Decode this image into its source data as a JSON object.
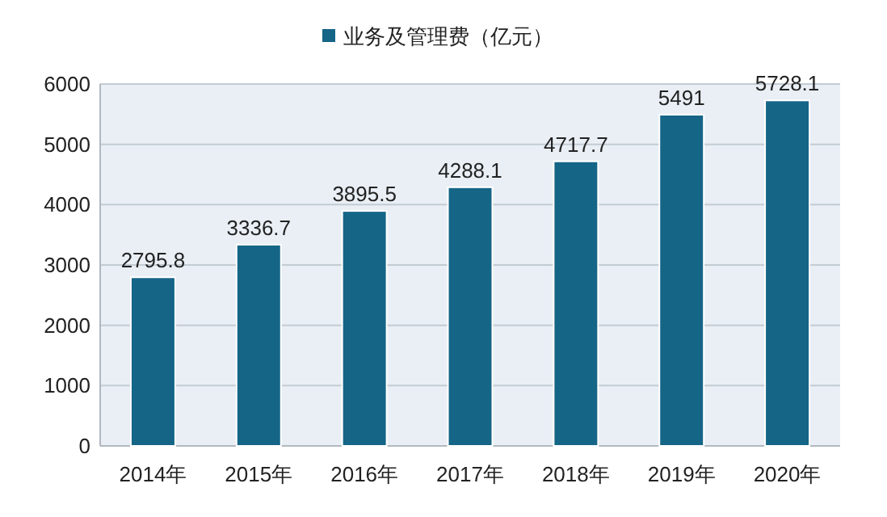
{
  "chart_data": {
    "type": "bar",
    "categories": [
      "2014年",
      "2015年",
      "2016年",
      "2017年",
      "2018年",
      "2019年",
      "2020年"
    ],
    "series": [
      {
        "name": "业务及管理费（亿元）",
        "color": "#156587",
        "values": [
          2795.8,
          3336.7,
          3895.5,
          4288.1,
          4717.7,
          5491,
          5728.1
        ]
      }
    ],
    "ylim": [
      0,
      6000
    ],
    "yticks": [
      0,
      1000,
      2000,
      3000,
      4000,
      5000,
      6000
    ],
    "grid": "y",
    "legend": "top",
    "data_labels": true
  }
}
